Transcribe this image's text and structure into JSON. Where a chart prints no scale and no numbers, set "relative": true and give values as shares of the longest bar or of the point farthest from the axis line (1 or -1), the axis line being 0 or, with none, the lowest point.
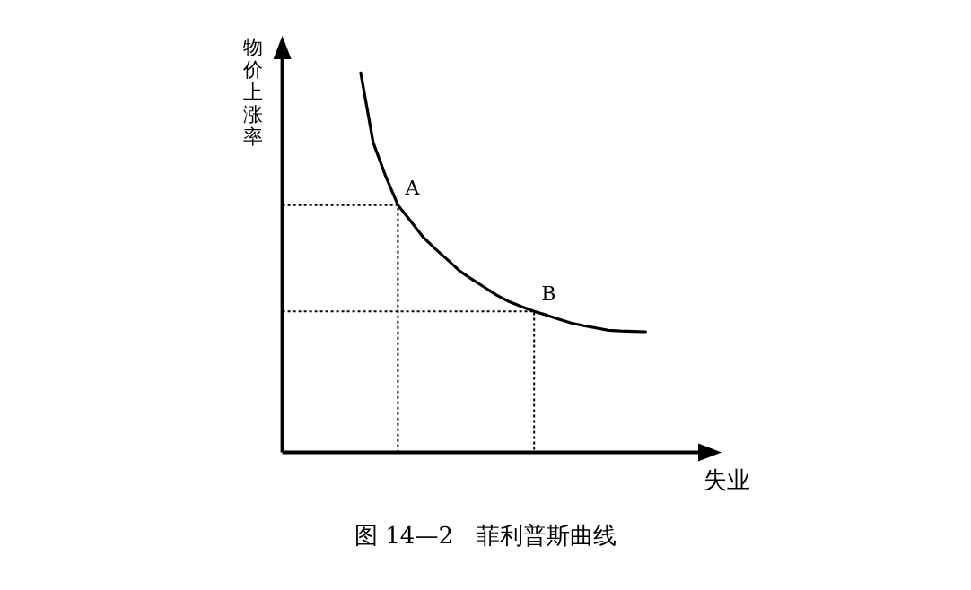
{
  "chart_data": {
    "type": "line",
    "relative": true,
    "xlabel": "失业",
    "ylabel": "物价上涨率",
    "categories": [
      null,
      null,
      null,
      null,
      null,
      null,
      null,
      null,
      null,
      null,
      null,
      null,
      null,
      null,
      null,
      null,
      null,
      null,
      null,
      null,
      null,
      null,
      null,
      null
    ],
    "series": [
      {
        "color": "#000000",
        "values": [
          1.0,
          0.817,
          0.729,
          0.652,
          0.611,
          0.569,
          0.537,
          0.508,
          0.478,
          0.456,
          0.435,
          0.414,
          0.397,
          0.384,
          0.372,
          0.362,
          0.351,
          0.341,
          0.334,
          0.328,
          0.322,
          0.32,
          0.319,
          0.318
        ]
      }
    ],
    "ref_lines": [
      {
        "axis": "y",
        "value": 0.652,
        "label": "A",
        "color": "#000000",
        "line_style": "dotted"
      },
      {
        "axis": "y",
        "value": 0.372,
        "label": "B",
        "color": "#000000",
        "line_style": "dotted"
      }
    ],
    "annotations": [
      "图 14—2　菲利普斯曲线"
    ]
  }
}
